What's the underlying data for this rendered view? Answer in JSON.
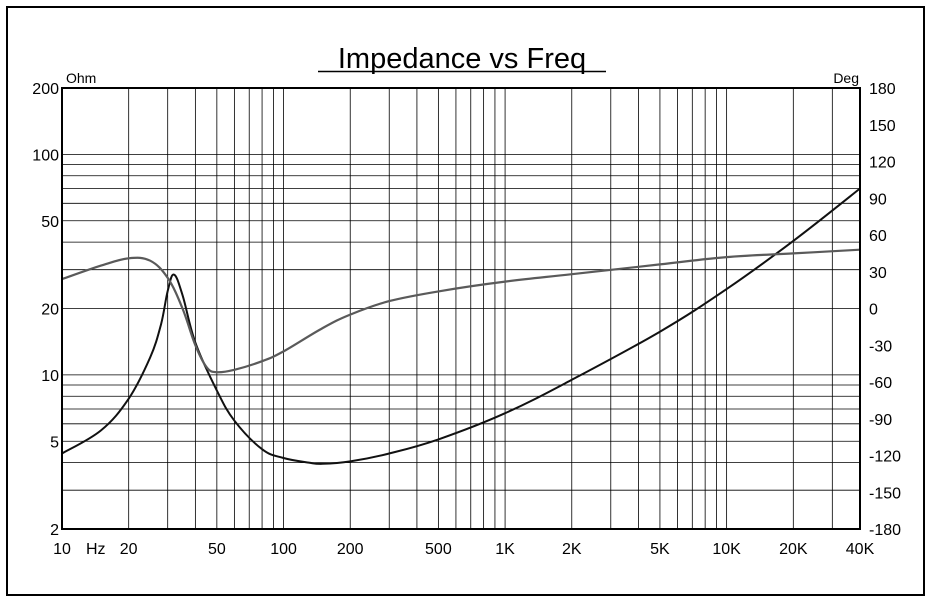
{
  "chart_data": {
    "type": "line",
    "title": "Impedance vs Freq",
    "x_scale": "log",
    "x_range": [
      10,
      40000
    ],
    "x_tick_labels": [
      {
        "value": 10,
        "label": "10"
      },
      {
        "value": 20,
        "label": "20"
      },
      {
        "value": 50,
        "label": "50"
      },
      {
        "value": 100,
        "label": "100"
      },
      {
        "value": 200,
        "label": "200"
      },
      {
        "value": 500,
        "label": "500"
      },
      {
        "value": 1000,
        "label": "1K"
      },
      {
        "value": 2000,
        "label": "2K"
      },
      {
        "value": 5000,
        "label": "5K"
      },
      {
        "value": 10000,
        "label": "10K"
      },
      {
        "value": 20000,
        "label": "20K"
      },
      {
        "value": 40000,
        "label": "40K"
      }
    ],
    "x_unit": "Hz",
    "y_left": {
      "unit": "Ohm",
      "scale": "log",
      "range": [
        2,
        200
      ],
      "ticks": [
        {
          "value": 200,
          "label": "200"
        },
        {
          "value": 100,
          "label": "100"
        },
        {
          "value": 50,
          "label": "50"
        },
        {
          "value": 20,
          "label": "20"
        },
        {
          "value": 10,
          "label": "10"
        },
        {
          "value": 5,
          "label": "5"
        },
        {
          "value": 2,
          "label": "2"
        }
      ]
    },
    "y_right": {
      "unit": "Deg",
      "scale": "linear",
      "range": [
        -180,
        180
      ],
      "ticks": [
        180,
        150,
        120,
        90,
        60,
        30,
        0,
        -30,
        -60,
        -90,
        -120,
        -150,
        -180
      ]
    },
    "grid": true,
    "series": [
      {
        "axis": "left",
        "color": "#111111",
        "x": [
          10,
          15,
          20,
          25,
          28,
          30,
          32,
          35,
          40,
          50,
          60,
          80,
          100,
          130,
          150,
          200,
          300,
          500,
          1000,
          2000,
          5000,
          10000,
          20000,
          40000
        ],
        "y": [
          4.4,
          5.6,
          7.8,
          12,
          17,
          24,
          28.5,
          23,
          14,
          8.5,
          6.2,
          4.6,
          4.2,
          4,
          3.95,
          4.05,
          4.4,
          5.1,
          6.7,
          9.5,
          15.7,
          24.5,
          40.5,
          70
        ]
      },
      {
        "axis": "right",
        "color": "#5a5a5a",
        "x": [
          10,
          15,
          20,
          25,
          30,
          35,
          40,
          45,
          50,
          60,
          80,
          100,
          150,
          200,
          300,
          500,
          1000,
          2000,
          5000,
          10000,
          20000,
          40000
        ],
        "y": [
          24,
          35,
          41,
          39,
          25,
          0,
          -30,
          -48,
          -52,
          -50,
          -43,
          -35,
          -16,
          -5,
          6,
          14,
          22,
          28,
          36,
          42,
          45,
          48
        ]
      }
    ]
  }
}
